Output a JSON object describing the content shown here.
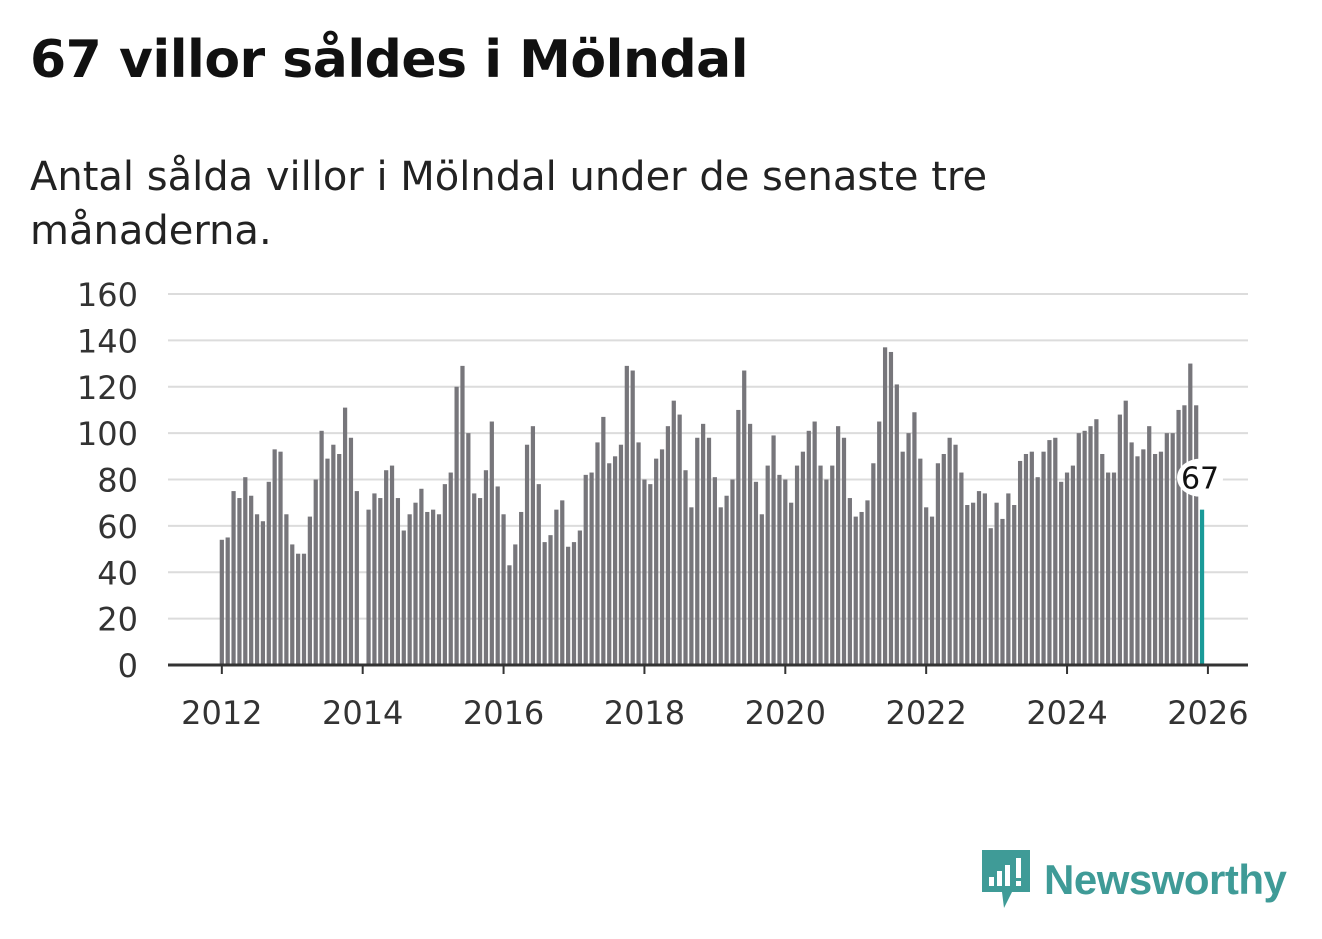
{
  "title": "67 villor såldes i Mölndal",
  "subtitle": "Antal sålda villor i Mölndal under de senaste tre månaderna.",
  "brand": {
    "name": "Newsworthy",
    "color": "#3f9b97",
    "icon": "newsworthy-logo-icon"
  },
  "chart_data": {
    "type": "bar",
    "title": "67 villor såldes i Mölndal",
    "xlabel": "",
    "ylabel": "",
    "ylim": [
      0,
      160
    ],
    "yticks": [
      0,
      20,
      40,
      60,
      80,
      100,
      120,
      140,
      160
    ],
    "xticks": [
      "2012",
      "2014",
      "2016",
      "2018",
      "2020",
      "2022",
      "2024",
      "2026"
    ],
    "xrange": [
      "2011-04",
      "2026-08"
    ],
    "start": "2012-01",
    "bar_color": "#77767b",
    "highlight_color": "#1a9a98",
    "highlight_label": "67",
    "grid": true,
    "values": [
      54,
      55,
      75,
      72,
      81,
      73,
      65,
      62,
      79,
      93,
      92,
      65,
      52,
      48,
      48,
      64,
      80,
      101,
      89,
      95,
      91,
      111,
      98,
      75,
      null,
      67,
      74,
      72,
      84,
      86,
      72,
      58,
      65,
      70,
      76,
      66,
      67,
      65,
      78,
      83,
      120,
      129,
      100,
      74,
      72,
      84,
      105,
      77,
      65,
      43,
      52,
      66,
      95,
      103,
      78,
      53,
      56,
      67,
      71,
      51,
      53,
      58,
      82,
      83,
      96,
      107,
      87,
      90,
      95,
      129,
      127,
      96,
      80,
      78,
      89,
      93,
      103,
      114,
      108,
      84,
      68,
      98,
      104,
      98,
      81,
      68,
      73,
      80,
      110,
      127,
      104,
      79,
      65,
      86,
      99,
      82,
      80,
      70,
      86,
      92,
      101,
      105,
      86,
      80,
      86,
      103,
      98,
      72,
      64,
      66,
      71,
      87,
      105,
      137,
      135,
      121,
      92,
      100,
      109,
      89,
      68,
      64,
      87,
      91,
      98,
      95,
      83,
      69,
      70,
      75,
      74,
      59,
      70,
      63,
      74,
      69,
      88,
      91,
      92,
      81,
      92,
      97,
      98,
      79,
      83,
      86,
      100,
      101,
      103,
      106,
      91,
      83,
      83,
      108,
      114,
      96,
      90,
      93,
      103,
      91,
      92,
      100,
      100,
      110,
      112,
      130,
      112,
      67
    ]
  }
}
